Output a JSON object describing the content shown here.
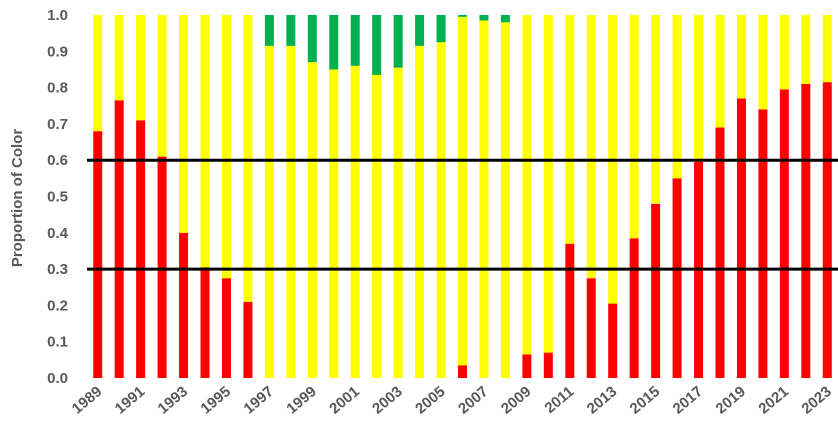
{
  "chart_data": {
    "type": "bar",
    "stacked": true,
    "ylabel": "Proportion of Color",
    "xlabel": "",
    "ylim": [
      0,
      1
    ],
    "yticks": [
      "0.0",
      "0.1",
      "0.2",
      "0.3",
      "0.4",
      "0.5",
      "0.6",
      "0.7",
      "0.8",
      "0.9",
      "1.0"
    ],
    "categories": [
      "1989",
      "1990",
      "1991",
      "1992",
      "1993",
      "1994",
      "1995",
      "1996",
      "1997",
      "1998",
      "1999",
      "2000",
      "2001",
      "2002",
      "2003",
      "2004",
      "2005",
      "2006",
      "2007",
      "2008",
      "2009",
      "2010",
      "2011",
      "2012",
      "2013",
      "2014",
      "2015",
      "2016",
      "2017",
      "2018",
      "2019",
      "2020",
      "2021",
      "2022",
      "2023"
    ],
    "x_tick_labels": [
      "1989",
      "1991",
      "1993",
      "1995",
      "1997",
      "1999",
      "2001",
      "2003",
      "2005",
      "2007",
      "2009",
      "2011",
      "2013",
      "2015",
      "2017",
      "2019",
      "2021",
      "2023"
    ],
    "series": [
      {
        "color": "#ff0000",
        "values": [
          0.68,
          0.765,
          0.71,
          0.61,
          0.4,
          0.305,
          0.275,
          0.21,
          0,
          0,
          0,
          0,
          0,
          0,
          0,
          0,
          0,
          0.035,
          0,
          0,
          0.065,
          0.07,
          0.37,
          0.275,
          0.205,
          0.385,
          0.48,
          0.55,
          0.595,
          0.69,
          0.77,
          0.74,
          0.795,
          0.81,
          0.815
        ]
      },
      {
        "color": "#ffff00",
        "values": [
          0.32,
          0.235,
          0.29,
          0.39,
          0.6,
          0.695,
          0.725,
          0.79,
          0.915,
          0.915,
          0.87,
          0.85,
          0.86,
          0.835,
          0.855,
          0.915,
          0.925,
          0.96,
          0.985,
          0.98,
          0.935,
          0.93,
          0.63,
          0.725,
          0.795,
          0.615,
          0.52,
          0.45,
          0.405,
          0.31,
          0.23,
          0.26,
          0.205,
          0.19,
          0.185
        ]
      },
      {
        "color": "#00b050",
        "values": [
          0,
          0,
          0,
          0,
          0,
          0,
          0,
          0,
          0.085,
          0.085,
          0.13,
          0.15,
          0.14,
          0.165,
          0.145,
          0.085,
          0.075,
          0.005,
          0.015,
          0.02,
          0,
          0,
          0,
          0,
          0,
          0,
          0,
          0,
          0,
          0,
          0,
          0,
          0,
          0,
          0
        ]
      }
    ],
    "reference_lines": [
      0.6,
      0.3
    ],
    "reference_line_color": "#000000"
  }
}
